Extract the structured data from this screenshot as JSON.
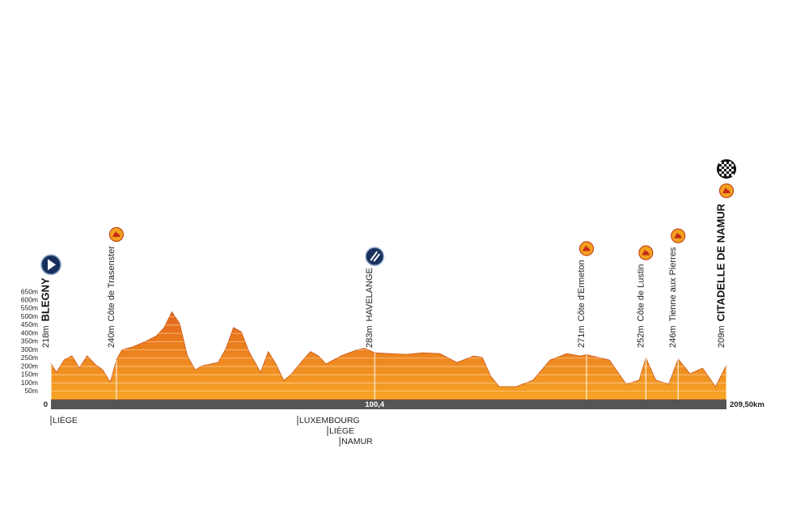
{
  "chart_data": {
    "type": "area",
    "x": [
      0,
      1.7,
      4.1,
      6.5,
      7.6,
      8.8,
      11.2,
      13.6,
      16.0,
      18.4,
      20.3,
      22.0,
      25.6,
      29.2,
      32.7,
      35.1,
      37.5,
      39.9,
      42.3,
      44.7,
      47.1,
      51.9,
      54.3,
      56.6,
      59.0,
      61.4,
      65.0,
      67.4,
      69.8,
      72.2,
      74.6,
      78.2,
      80.5,
      82.9,
      85.3,
      87.7,
      90.1,
      94.9,
      97.3,
      100.4,
      104.9,
      110.1,
      115.3,
      120.6,
      125.9,
      131.1,
      133.8,
      136.4,
      139.0,
      144.3,
      149.5,
      154.8,
      160.0,
      164.0,
      166.1,
      173.2,
      175.8,
      178.4,
      182.4,
      184.5,
      187.6,
      191.6,
      194.5,
      198.2,
      202.1,
      206.1,
      209.5
    ],
    "values": [
      218,
      165,
      240,
      265,
      230,
      190,
      265,
      215,
      180,
      105,
      240,
      300,
      320,
      350,
      385,
      435,
      530,
      460,
      265,
      180,
      205,
      225,
      310,
      435,
      410,
      290,
      165,
      290,
      215,
      115,
      155,
      240,
      290,
      265,
      215,
      240,
      265,
      300,
      310,
      283,
      278,
      273,
      283,
      278,
      224,
      263,
      254,
      141,
      78,
      78,
      117,
      239,
      278,
      263,
      271,
      239,
      166,
      93,
      117,
      252,
      117,
      93,
      246,
      156,
      190,
      78,
      209
    ],
    "color": "#ee7d1f",
    "xlim": [
      0,
      209.5
    ],
    "ylim": [
      0,
      650
    ],
    "xticks": [
      0,
      {
        "value": 100.4,
        "label": "100,4"
      },
      {
        "value": 209.5,
        "label": "209,50km"
      }
    ],
    "yticks": [
      {
        "value": 50,
        "label": "50m"
      },
      {
        "value": 100,
        "label": "100m"
      },
      {
        "value": 150,
        "label": "150m"
      },
      {
        "value": 200,
        "label": "200m"
      },
      {
        "value": 250,
        "label": "250m"
      },
      {
        "value": 300,
        "label": "300m"
      },
      {
        "value": 350,
        "label": "350m"
      },
      {
        "value": 400,
        "label": "400m"
      },
      {
        "value": 450,
        "label": "450m"
      },
      {
        "value": 500,
        "label": "500m"
      },
      {
        "value": 550,
        "label": "550m"
      },
      {
        "value": 600,
        "label": "600m"
      },
      {
        "value": 650,
        "label": "650m"
      }
    ],
    "grid": true,
    "points": [
      {
        "name": "BLEGNY",
        "km": 0,
        "altitude": 218,
        "altitude_label": "218m",
        "icon": "start"
      },
      {
        "name": "Côte de Trasenster",
        "km": 20.3,
        "altitude": 240,
        "altitude_label": "240m",
        "icon": "climb"
      },
      {
        "name": "HAVELANGE",
        "km": 100.4,
        "altitude": 283,
        "altitude_label": "283m",
        "icon": "feed"
      },
      {
        "name": "Côte d'Ermeton",
        "km": 166.1,
        "altitude": 271,
        "altitude_label": "271m",
        "icon": "climb"
      },
      {
        "name": "Côte de Lustin",
        "km": 184.5,
        "altitude": 252,
        "altitude_label": "252m",
        "icon": "climb"
      },
      {
        "name": "Tienne aux Pierres",
        "km": 194.5,
        "altitude": 246,
        "altitude_label": "246m",
        "icon": "climb"
      },
      {
        "name": "CITADELLE DE NAMUR",
        "km": 209.5,
        "altitude": 209,
        "altitude_label": "209m",
        "icon": "finish"
      }
    ],
    "regions": [
      {
        "label": "LIÈGE",
        "km": 0
      },
      {
        "label": "LUXEMBOURG",
        "km": 76.5
      },
      {
        "label": "LIÈGE",
        "km": 85.8
      },
      {
        "label": "NAMUR",
        "km": 89.6
      }
    ]
  }
}
